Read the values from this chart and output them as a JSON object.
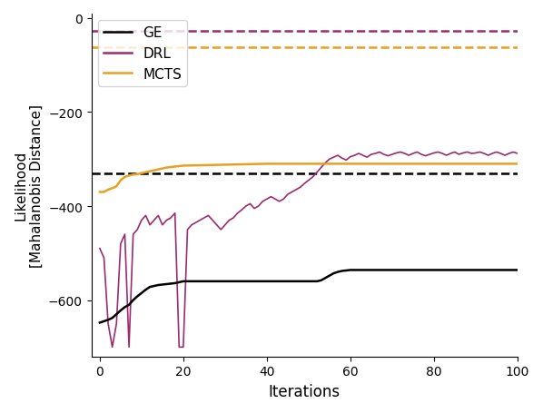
{
  "title": "",
  "xlabel": "Iterations",
  "ylabel": "Likelihood\n[Mahalanobis Distance]",
  "xlim": [
    -2,
    100
  ],
  "ylim": [
    -720,
    10
  ],
  "yticks": [
    0,
    -200,
    -400,
    -600
  ],
  "xticks": [
    0,
    20,
    40,
    60,
    80,
    100
  ],
  "ge_color": "#000000",
  "drl_color": "#9B2D6E",
  "mcts_color": "#E8A020",
  "ge_dashed_y": -330,
  "drl_dashed_y": -28,
  "mcts_dashed_y": -62,
  "ge_steps": [
    [
      0,
      -648
    ],
    [
      1,
      -645
    ],
    [
      2,
      -642
    ],
    [
      3,
      -638
    ],
    [
      4,
      -630
    ],
    [
      5,
      -622
    ],
    [
      6,
      -615
    ],
    [
      7,
      -610
    ],
    [
      8,
      -600
    ],
    [
      9,
      -592
    ],
    [
      10,
      -585
    ],
    [
      11,
      -578
    ],
    [
      12,
      -572
    ],
    [
      13,
      -570
    ],
    [
      14,
      -568
    ],
    [
      15,
      -567
    ],
    [
      16,
      -566
    ],
    [
      17,
      -565
    ],
    [
      18,
      -564
    ],
    [
      19,
      -562
    ],
    [
      20,
      -560
    ],
    [
      21,
      -560
    ],
    [
      22,
      -560
    ],
    [
      23,
      -560
    ],
    [
      24,
      -560
    ],
    [
      25,
      -560
    ],
    [
      30,
      -560
    ],
    [
      35,
      -560
    ],
    [
      40,
      -560
    ],
    [
      45,
      -560
    ],
    [
      50,
      -560
    ],
    [
      52,
      -560
    ],
    [
      53,
      -558
    ],
    [
      54,
      -553
    ],
    [
      55,
      -548
    ],
    [
      56,
      -543
    ],
    [
      57,
      -540
    ],
    [
      58,
      -538
    ],
    [
      59,
      -537
    ],
    [
      60,
      -536
    ],
    [
      61,
      -536
    ],
    [
      65,
      -536
    ],
    [
      70,
      -536
    ],
    [
      75,
      -536
    ],
    [
      80,
      -536
    ],
    [
      85,
      -536
    ],
    [
      90,
      -536
    ],
    [
      95,
      -536
    ],
    [
      100,
      -536
    ]
  ],
  "drl_data": [
    [
      0,
      -490
    ],
    [
      1,
      -510
    ],
    [
      2,
      -650
    ],
    [
      3,
      -700
    ],
    [
      4,
      -650
    ],
    [
      5,
      -480
    ],
    [
      6,
      -460
    ],
    [
      7,
      -700
    ],
    [
      8,
      -460
    ],
    [
      9,
      -450
    ],
    [
      10,
      -430
    ],
    [
      11,
      -420
    ],
    [
      12,
      -440
    ],
    [
      13,
      -430
    ],
    [
      14,
      -420
    ],
    [
      15,
      -440
    ],
    [
      16,
      -430
    ],
    [
      17,
      -425
    ],
    [
      18,
      -415
    ],
    [
      19,
      -700
    ],
    [
      20,
      -700
    ],
    [
      21,
      -450
    ],
    [
      22,
      -440
    ],
    [
      23,
      -435
    ],
    [
      24,
      -430
    ],
    [
      25,
      -425
    ],
    [
      26,
      -420
    ],
    [
      27,
      -430
    ],
    [
      28,
      -440
    ],
    [
      29,
      -450
    ],
    [
      30,
      -440
    ],
    [
      31,
      -430
    ],
    [
      32,
      -425
    ],
    [
      33,
      -415
    ],
    [
      34,
      -408
    ],
    [
      35,
      -400
    ],
    [
      36,
      -395
    ],
    [
      37,
      -405
    ],
    [
      38,
      -400
    ],
    [
      39,
      -390
    ],
    [
      40,
      -385
    ],
    [
      41,
      -380
    ],
    [
      42,
      -385
    ],
    [
      43,
      -390
    ],
    [
      44,
      -385
    ],
    [
      45,
      -375
    ],
    [
      46,
      -370
    ],
    [
      47,
      -365
    ],
    [
      48,
      -360
    ],
    [
      49,
      -352
    ],
    [
      50,
      -345
    ],
    [
      51,
      -338
    ],
    [
      52,
      -328
    ],
    [
      53,
      -318
    ],
    [
      54,
      -308
    ],
    [
      55,
      -300
    ],
    [
      56,
      -296
    ],
    [
      57,
      -292
    ],
    [
      58,
      -298
    ],
    [
      59,
      -302
    ],
    [
      60,
      -295
    ],
    [
      61,
      -292
    ],
    [
      62,
      -288
    ],
    [
      63,
      -292
    ],
    [
      64,
      -296
    ],
    [
      65,
      -290
    ],
    [
      66,
      -288
    ],
    [
      67,
      -285
    ],
    [
      68,
      -290
    ],
    [
      69,
      -293
    ],
    [
      70,
      -290
    ],
    [
      71,
      -287
    ],
    [
      72,
      -285
    ],
    [
      73,
      -288
    ],
    [
      74,
      -292
    ],
    [
      75,
      -288
    ],
    [
      76,
      -285
    ],
    [
      77,
      -290
    ],
    [
      78,
      -293
    ],
    [
      79,
      -290
    ],
    [
      80,
      -287
    ],
    [
      81,
      -285
    ],
    [
      82,
      -288
    ],
    [
      83,
      -292
    ],
    [
      84,
      -288
    ],
    [
      85,
      -285
    ],
    [
      86,
      -290
    ],
    [
      87,
      -287
    ],
    [
      88,
      -285
    ],
    [
      89,
      -288
    ],
    [
      90,
      -287
    ],
    [
      91,
      -285
    ],
    [
      92,
      -288
    ],
    [
      93,
      -292
    ],
    [
      94,
      -288
    ],
    [
      95,
      -285
    ],
    [
      96,
      -288
    ],
    [
      97,
      -292
    ],
    [
      98,
      -288
    ],
    [
      99,
      -285
    ],
    [
      100,
      -288
    ]
  ],
  "mcts_data": [
    [
      0,
      -370
    ],
    [
      1,
      -370
    ],
    [
      2,
      -365
    ],
    [
      3,
      -362
    ],
    [
      4,
      -358
    ],
    [
      5,
      -345
    ],
    [
      6,
      -338
    ],
    [
      7,
      -335
    ],
    [
      8,
      -333
    ],
    [
      9,
      -332
    ],
    [
      10,
      -330
    ],
    [
      11,
      -328
    ],
    [
      12,
      -326
    ],
    [
      13,
      -324
    ],
    [
      14,
      -322
    ],
    [
      15,
      -320
    ],
    [
      16,
      -318
    ],
    [
      17,
      -317
    ],
    [
      18,
      -316
    ],
    [
      19,
      -315
    ],
    [
      20,
      -314
    ],
    [
      25,
      -313
    ],
    [
      30,
      -312
    ],
    [
      35,
      -311
    ],
    [
      40,
      -310
    ],
    [
      45,
      -310
    ],
    [
      50,
      -310
    ],
    [
      55,
      -310
    ],
    [
      60,
      -310
    ],
    [
      65,
      -310
    ],
    [
      70,
      -310
    ],
    [
      75,
      -310
    ],
    [
      80,
      -310
    ],
    [
      85,
      -310
    ],
    [
      90,
      -310
    ],
    [
      95,
      -310
    ],
    [
      100,
      -310
    ]
  ]
}
